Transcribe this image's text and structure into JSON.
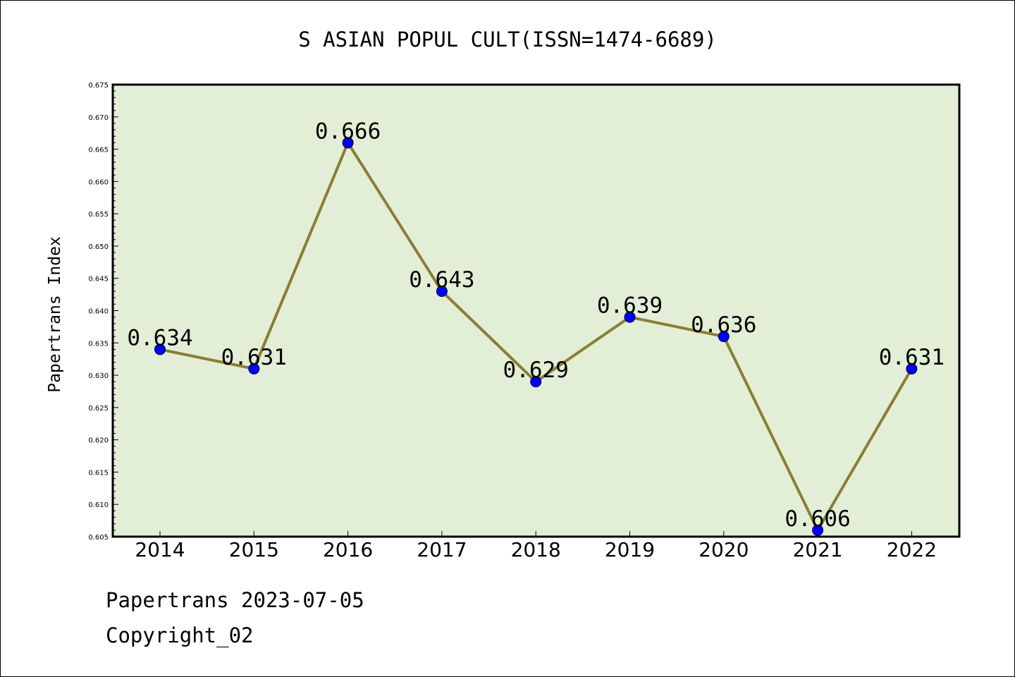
{
  "chart_data": {
    "type": "line",
    "title": "S ASIAN POPUL CULT(ISSN=1474-6689)",
    "xlabel": "",
    "ylabel": "Papertrans Index",
    "categories": [
      "2014",
      "2015",
      "2016",
      "2017",
      "2018",
      "2019",
      "2020",
      "2021",
      "2022"
    ],
    "series": [
      {
        "values": [
          0.634,
          0.631,
          0.666,
          0.643,
          0.629,
          0.639,
          0.636,
          0.606,
          0.631
        ]
      }
    ],
    "data_labels": [
      "0.634",
      "0.631",
      "0.666",
      "0.643",
      "0.629",
      "0.639",
      "0.636",
      "0.606",
      "0.631"
    ],
    "ylim": [
      0.605,
      0.675
    ],
    "yticks": [
      "0.605",
      "0.610",
      "0.615",
      "0.620",
      "0.625",
      "0.630",
      "0.635",
      "0.640",
      "0.645",
      "0.650",
      "0.655",
      "0.660",
      "0.665",
      "0.670",
      "0.675"
    ],
    "grid": false,
    "legend": "none",
    "colors": {
      "plot_background": "#e2efd6",
      "line": "#8b7d35",
      "marker": "#0000ff"
    }
  },
  "footer": {
    "line1": "Papertrans 2023-07-05",
    "line2": "Copyright_02"
  }
}
